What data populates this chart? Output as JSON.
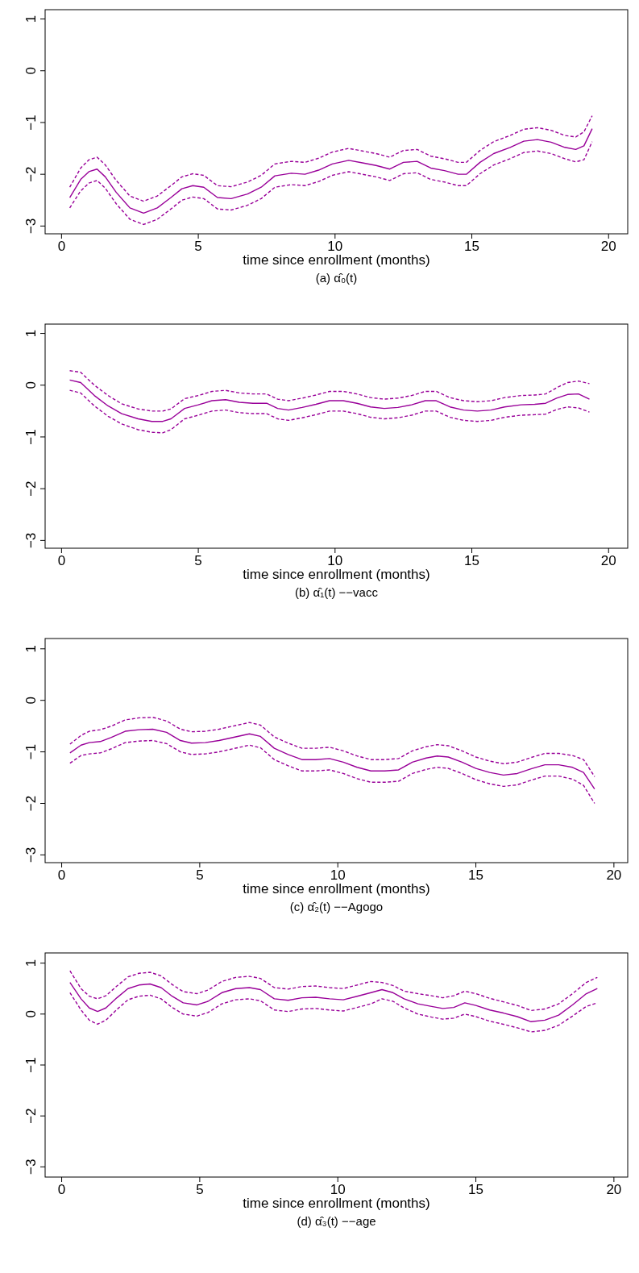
{
  "chart_data": [
    {
      "type": "line",
      "title": "(a) α̂₀(t)",
      "xlabel": "time since enrollment (months)",
      "xlim": [
        -0.6,
        20.7
      ],
      "ylim": [
        -3.15,
        1.18
      ],
      "xticks": [
        0,
        5,
        10,
        15,
        20
      ],
      "yticks": [
        -3,
        -2,
        -1,
        0,
        1
      ],
      "grid": false,
      "series": [
        {
          "color": "#990099",
          "line_style": "solid",
          "x": [
            0.3,
            0.7,
            1.0,
            1.3,
            1.6,
            2.0,
            2.5,
            3.0,
            3.5,
            4.0,
            4.4,
            4.8,
            5.2,
            5.7,
            6.2,
            6.8,
            7.3,
            7.8,
            8.4,
            8.9,
            9.4,
            9.9,
            10.5,
            11.0,
            11.5,
            12.0,
            12.5,
            13.0,
            13.5,
            14.0,
            14.5,
            14.8,
            15.3,
            15.8,
            16.4,
            16.9,
            17.4,
            17.9,
            18.4,
            18.8,
            19.1,
            19.4
          ],
          "values": [
            -2.45,
            -2.1,
            -1.95,
            -1.9,
            -2.05,
            -2.35,
            -2.65,
            -2.75,
            -2.65,
            -2.45,
            -2.28,
            -2.22,
            -2.25,
            -2.45,
            -2.47,
            -2.38,
            -2.25,
            -2.03,
            -1.98,
            -2.0,
            -1.92,
            -1.8,
            -1.73,
            -1.78,
            -1.83,
            -1.9,
            -1.77,
            -1.75,
            -1.88,
            -1.93,
            -2.0,
            -2.0,
            -1.77,
            -1.6,
            -1.48,
            -1.36,
            -1.33,
            -1.38,
            -1.48,
            -1.52,
            -1.45,
            -1.12
          ]
        },
        {
          "color": "#990099",
          "line_style": "dashed",
          "x": [
            0.3,
            0.7,
            1.0,
            1.3,
            1.6,
            2.0,
            2.5,
            3.0,
            3.5,
            4.0,
            4.4,
            4.8,
            5.2,
            5.7,
            6.2,
            6.8,
            7.3,
            7.8,
            8.4,
            8.9,
            9.4,
            9.9,
            10.5,
            11.0,
            11.5,
            12.0,
            12.5,
            13.0,
            13.5,
            14.0,
            14.5,
            14.8,
            15.3,
            15.8,
            16.4,
            16.9,
            17.4,
            17.9,
            18.4,
            18.8,
            19.1,
            19.4
          ],
          "values": [
            -2.25,
            -1.88,
            -1.72,
            -1.67,
            -1.82,
            -2.12,
            -2.42,
            -2.52,
            -2.42,
            -2.22,
            -2.05,
            -1.99,
            -2.02,
            -2.22,
            -2.24,
            -2.15,
            -2.02,
            -1.8,
            -1.75,
            -1.77,
            -1.69,
            -1.57,
            -1.5,
            -1.55,
            -1.6,
            -1.67,
            -1.54,
            -1.52,
            -1.65,
            -1.7,
            -1.77,
            -1.77,
            -1.54,
            -1.37,
            -1.25,
            -1.13,
            -1.1,
            -1.15,
            -1.25,
            -1.28,
            -1.18,
            -0.87
          ]
        },
        {
          "color": "#990099",
          "line_style": "dashed",
          "x": [
            0.3,
            0.7,
            1.0,
            1.3,
            1.6,
            2.0,
            2.5,
            3.0,
            3.5,
            4.0,
            4.4,
            4.8,
            5.2,
            5.7,
            6.2,
            6.8,
            7.3,
            7.8,
            8.4,
            8.9,
            9.4,
            9.9,
            10.5,
            11.0,
            11.5,
            12.0,
            12.5,
            13.0,
            13.5,
            14.0,
            14.5,
            14.8,
            15.3,
            15.8,
            16.4,
            16.9,
            17.4,
            17.9,
            18.4,
            18.8,
            19.1,
            19.4
          ],
          "values": [
            -2.65,
            -2.32,
            -2.17,
            -2.12,
            -2.27,
            -2.57,
            -2.87,
            -2.97,
            -2.87,
            -2.67,
            -2.5,
            -2.44,
            -2.47,
            -2.67,
            -2.69,
            -2.6,
            -2.47,
            -2.25,
            -2.2,
            -2.22,
            -2.14,
            -2.02,
            -1.95,
            -2.0,
            -2.05,
            -2.12,
            -1.99,
            -1.97,
            -2.1,
            -2.15,
            -2.22,
            -2.22,
            -1.99,
            -1.82,
            -1.7,
            -1.58,
            -1.55,
            -1.6,
            -1.7,
            -1.76,
            -1.72,
            -1.37
          ]
        }
      ]
    },
    {
      "type": "line",
      "title": "(b) α̂₁(t) −−vacc",
      "xlabel": "time since enrollment (months)",
      "xlim": [
        -0.6,
        20.7
      ],
      "ylim": [
        -3.15,
        1.18
      ],
      "xticks": [
        0,
        5,
        10,
        15,
        20
      ],
      "yticks": [
        -3,
        -2,
        -1,
        0,
        1
      ],
      "grid": false,
      "series": [
        {
          "color": "#990099",
          "line_style": "solid",
          "x": [
            0.3,
            0.7,
            1.2,
            1.7,
            2.2,
            2.8,
            3.3,
            3.7,
            4.0,
            4.5,
            5.0,
            5.5,
            6.0,
            6.5,
            7.0,
            7.5,
            7.9,
            8.3,
            8.8,
            9.3,
            9.8,
            10.3,
            10.8,
            11.3,
            11.8,
            12.3,
            12.8,
            13.3,
            13.7,
            14.2,
            14.7,
            15.2,
            15.7,
            16.2,
            16.8,
            17.3,
            17.7,
            18.1,
            18.5,
            18.9,
            19.3
          ],
          "values": [
            0.1,
            0.05,
            -0.2,
            -0.4,
            -0.55,
            -0.65,
            -0.7,
            -0.7,
            -0.65,
            -0.45,
            -0.38,
            -0.3,
            -0.28,
            -0.33,
            -0.35,
            -0.35,
            -0.45,
            -0.48,
            -0.43,
            -0.37,
            -0.3,
            -0.3,
            -0.35,
            -0.42,
            -0.45,
            -0.43,
            -0.38,
            -0.3,
            -0.3,
            -0.42,
            -0.48,
            -0.5,
            -0.48,
            -0.42,
            -0.38,
            -0.37,
            -0.35,
            -0.25,
            -0.18,
            -0.17,
            -0.27
          ]
        },
        {
          "color": "#990099",
          "line_style": "dashed",
          "x": [
            0.3,
            0.7,
            1.2,
            1.7,
            2.2,
            2.8,
            3.3,
            3.7,
            4.0,
            4.5,
            5.0,
            5.5,
            6.0,
            6.5,
            7.0,
            7.5,
            7.9,
            8.3,
            8.8,
            9.3,
            9.8,
            10.3,
            10.8,
            11.3,
            11.8,
            12.3,
            12.8,
            13.3,
            13.7,
            14.2,
            14.7,
            15.2,
            15.7,
            16.2,
            16.8,
            17.3,
            17.7,
            18.1,
            18.5,
            18.9,
            19.3
          ],
          "values": [
            0.28,
            0.25,
            0.0,
            -0.2,
            -0.36,
            -0.46,
            -0.5,
            -0.5,
            -0.46,
            -0.26,
            -0.2,
            -0.12,
            -0.1,
            -0.15,
            -0.17,
            -0.17,
            -0.27,
            -0.3,
            -0.25,
            -0.19,
            -0.12,
            -0.12,
            -0.17,
            -0.24,
            -0.27,
            -0.25,
            -0.2,
            -0.12,
            -0.12,
            -0.24,
            -0.3,
            -0.32,
            -0.3,
            -0.24,
            -0.2,
            -0.19,
            -0.17,
            -0.05,
            0.05,
            0.08,
            0.03
          ]
        },
        {
          "color": "#990099",
          "line_style": "dashed",
          "x": [
            0.3,
            0.7,
            1.2,
            1.7,
            2.2,
            2.8,
            3.3,
            3.7,
            4.0,
            4.5,
            5.0,
            5.5,
            6.0,
            6.5,
            7.0,
            7.5,
            7.9,
            8.3,
            8.8,
            9.3,
            9.8,
            10.3,
            10.8,
            11.3,
            11.8,
            12.3,
            12.8,
            13.3,
            13.7,
            14.2,
            14.7,
            15.2,
            15.7,
            16.2,
            16.8,
            17.3,
            17.7,
            18.1,
            18.5,
            18.9,
            19.3
          ],
          "values": [
            -0.1,
            -0.15,
            -0.4,
            -0.6,
            -0.75,
            -0.86,
            -0.91,
            -0.92,
            -0.86,
            -0.65,
            -0.58,
            -0.5,
            -0.48,
            -0.53,
            -0.55,
            -0.55,
            -0.65,
            -0.68,
            -0.63,
            -0.57,
            -0.5,
            -0.5,
            -0.55,
            -0.62,
            -0.65,
            -0.63,
            -0.58,
            -0.5,
            -0.5,
            -0.62,
            -0.68,
            -0.7,
            -0.68,
            -0.62,
            -0.58,
            -0.57,
            -0.56,
            -0.47,
            -0.42,
            -0.44,
            -0.52
          ]
        }
      ]
    },
    {
      "type": "line",
      "title": "(c) α̂₂(t) −−Agogo",
      "xlabel": "time since enrollment (months)",
      "xlim": [
        -0.6,
        20.5
      ],
      "ylim": [
        -3.15,
        1.2
      ],
      "xticks": [
        0,
        5,
        10,
        15,
        20
      ],
      "yticks": [
        -3,
        -2,
        -1,
        0,
        1
      ],
      "grid": false,
      "series": [
        {
          "color": "#990099",
          "line_style": "solid",
          "x": [
            0.3,
            0.7,
            1.0,
            1.4,
            1.8,
            2.3,
            2.8,
            3.3,
            3.8,
            4.3,
            4.7,
            5.2,
            5.7,
            6.2,
            6.8,
            7.2,
            7.7,
            8.2,
            8.7,
            9.2,
            9.7,
            10.2,
            10.7,
            11.2,
            11.7,
            12.2,
            12.7,
            13.2,
            13.6,
            14.0,
            14.5,
            15.0,
            15.5,
            16.0,
            16.5,
            17.0,
            17.5,
            18.0,
            18.5,
            18.9,
            19.3
          ],
          "values": [
            -1.02,
            -0.87,
            -0.82,
            -0.8,
            -0.72,
            -0.6,
            -0.57,
            -0.56,
            -0.62,
            -0.78,
            -0.83,
            -0.82,
            -0.78,
            -0.72,
            -0.65,
            -0.7,
            -0.93,
            -1.05,
            -1.15,
            -1.15,
            -1.13,
            -1.2,
            -1.3,
            -1.37,
            -1.37,
            -1.35,
            -1.2,
            -1.12,
            -1.08,
            -1.1,
            -1.2,
            -1.32,
            -1.4,
            -1.45,
            -1.42,
            -1.33,
            -1.25,
            -1.25,
            -1.3,
            -1.4,
            -1.72
          ]
        },
        {
          "color": "#990099",
          "line_style": "dashed",
          "x": [
            0.3,
            0.7,
            1.0,
            1.4,
            1.8,
            2.3,
            2.8,
            3.3,
            3.8,
            4.3,
            4.7,
            5.2,
            5.7,
            6.2,
            6.8,
            7.2,
            7.7,
            8.2,
            8.7,
            9.2,
            9.7,
            10.2,
            10.7,
            11.2,
            11.7,
            12.2,
            12.7,
            13.2,
            13.6,
            14.0,
            14.5,
            15.0,
            15.5,
            16.0,
            16.5,
            17.0,
            17.5,
            18.0,
            18.5,
            18.9,
            19.3
          ],
          "values": [
            -0.85,
            -0.68,
            -0.6,
            -0.57,
            -0.5,
            -0.38,
            -0.34,
            -0.33,
            -0.4,
            -0.56,
            -0.61,
            -0.6,
            -0.56,
            -0.5,
            -0.43,
            -0.48,
            -0.71,
            -0.83,
            -0.93,
            -0.93,
            -0.91,
            -0.98,
            -1.08,
            -1.15,
            -1.15,
            -1.13,
            -0.98,
            -0.9,
            -0.86,
            -0.88,
            -0.98,
            -1.1,
            -1.18,
            -1.23,
            -1.2,
            -1.11,
            -1.03,
            -1.03,
            -1.07,
            -1.15,
            -1.48
          ]
        },
        {
          "color": "#990099",
          "line_style": "dashed",
          "x": [
            0.3,
            0.7,
            1.0,
            1.4,
            1.8,
            2.3,
            2.8,
            3.3,
            3.8,
            4.3,
            4.7,
            5.2,
            5.7,
            6.2,
            6.8,
            7.2,
            7.7,
            8.2,
            8.7,
            9.2,
            9.7,
            10.2,
            10.7,
            11.2,
            11.7,
            12.2,
            12.7,
            13.2,
            13.6,
            14.0,
            14.5,
            15.0,
            15.5,
            16.0,
            16.5,
            17.0,
            17.5,
            18.0,
            18.5,
            18.9,
            19.3
          ],
          "values": [
            -1.22,
            -1.07,
            -1.04,
            -1.02,
            -0.94,
            -0.82,
            -0.79,
            -0.78,
            -0.84,
            -1.0,
            -1.05,
            -1.04,
            -1.0,
            -0.94,
            -0.87,
            -0.92,
            -1.15,
            -1.27,
            -1.37,
            -1.37,
            -1.35,
            -1.42,
            -1.52,
            -1.59,
            -1.59,
            -1.57,
            -1.42,
            -1.34,
            -1.3,
            -1.32,
            -1.42,
            -1.54,
            -1.62,
            -1.67,
            -1.64,
            -1.55,
            -1.47,
            -1.47,
            -1.53,
            -1.65,
            -2.0
          ]
        }
      ]
    },
    {
      "type": "line",
      "title": "(d) α̂₃(t) −−age",
      "xlabel": "time since enrollment (months)",
      "xlim": [
        -0.6,
        20.5
      ],
      "ylim": [
        -3.2,
        1.2
      ],
      "xticks": [
        0,
        5,
        10,
        15,
        20
      ],
      "yticks": [
        -3,
        -2,
        -1,
        0,
        1
      ],
      "grid": false,
      "series": [
        {
          "color": "#990099",
          "line_style": "solid",
          "x": [
            0.3,
            0.7,
            1.0,
            1.3,
            1.6,
            2.0,
            2.4,
            2.8,
            3.2,
            3.6,
            4.0,
            4.4,
            4.9,
            5.3,
            5.8,
            6.3,
            6.8,
            7.2,
            7.7,
            8.2,
            8.7,
            9.2,
            9.7,
            10.2,
            10.7,
            11.2,
            11.6,
            12.0,
            12.4,
            12.9,
            13.4,
            13.8,
            14.2,
            14.6,
            15.0,
            15.5,
            16.0,
            16.5,
            17.0,
            17.5,
            18.0,
            18.5,
            19.0,
            19.4
          ],
          "values": [
            0.62,
            0.3,
            0.12,
            0.05,
            0.12,
            0.32,
            0.5,
            0.57,
            0.59,
            0.52,
            0.35,
            0.22,
            0.18,
            0.25,
            0.42,
            0.5,
            0.52,
            0.48,
            0.3,
            0.27,
            0.32,
            0.33,
            0.3,
            0.28,
            0.35,
            0.42,
            0.48,
            0.42,
            0.3,
            0.2,
            0.15,
            0.11,
            0.13,
            0.22,
            0.17,
            0.08,
            0.02,
            -0.05,
            -0.15,
            -0.12,
            -0.02,
            0.18,
            0.4,
            0.5
          ]
        },
        {
          "color": "#990099",
          "line_style": "dashed",
          "x": [
            0.3,
            0.7,
            1.0,
            1.3,
            1.6,
            2.0,
            2.4,
            2.8,
            3.2,
            3.6,
            4.0,
            4.4,
            4.9,
            5.3,
            5.8,
            6.3,
            6.8,
            7.2,
            7.7,
            8.2,
            8.7,
            9.2,
            9.7,
            10.2,
            10.7,
            11.2,
            11.6,
            12.0,
            12.4,
            12.9,
            13.4,
            13.8,
            14.2,
            14.6,
            15.0,
            15.5,
            16.0,
            16.5,
            17.0,
            17.5,
            18.0,
            18.5,
            19.0,
            19.4
          ],
          "values": [
            0.85,
            0.5,
            0.35,
            0.3,
            0.36,
            0.55,
            0.73,
            0.8,
            0.82,
            0.75,
            0.58,
            0.44,
            0.4,
            0.47,
            0.64,
            0.72,
            0.74,
            0.7,
            0.52,
            0.49,
            0.54,
            0.55,
            0.52,
            0.5,
            0.57,
            0.64,
            0.62,
            0.56,
            0.45,
            0.4,
            0.36,
            0.32,
            0.36,
            0.45,
            0.4,
            0.31,
            0.24,
            0.17,
            0.07,
            0.1,
            0.2,
            0.4,
            0.62,
            0.72
          ]
        },
        {
          "color": "#990099",
          "line_style": "dashed",
          "x": [
            0.3,
            0.7,
            1.0,
            1.3,
            1.6,
            2.0,
            2.4,
            2.8,
            3.2,
            3.6,
            4.0,
            4.4,
            4.9,
            5.3,
            5.8,
            6.3,
            6.8,
            7.2,
            7.7,
            8.2,
            8.7,
            9.2,
            9.7,
            10.2,
            10.7,
            11.2,
            11.6,
            12.0,
            12.4,
            12.9,
            13.4,
            13.8,
            14.2,
            14.6,
            15.0,
            15.5,
            16.0,
            16.5,
            17.0,
            17.5,
            18.0,
            18.5,
            19.0,
            19.4
          ],
          "values": [
            0.42,
            0.08,
            -0.12,
            -0.2,
            -0.12,
            0.09,
            0.28,
            0.35,
            0.37,
            0.3,
            0.13,
            0.0,
            -0.04,
            0.03,
            0.2,
            0.28,
            0.3,
            0.26,
            0.08,
            0.05,
            0.1,
            0.11,
            0.08,
            0.06,
            0.13,
            0.2,
            0.3,
            0.25,
            0.12,
            0.0,
            -0.06,
            -0.1,
            -0.08,
            0.0,
            -0.05,
            -0.14,
            -0.2,
            -0.27,
            -0.35,
            -0.32,
            -0.22,
            -0.04,
            0.15,
            0.22
          ]
        }
      ]
    }
  ]
}
